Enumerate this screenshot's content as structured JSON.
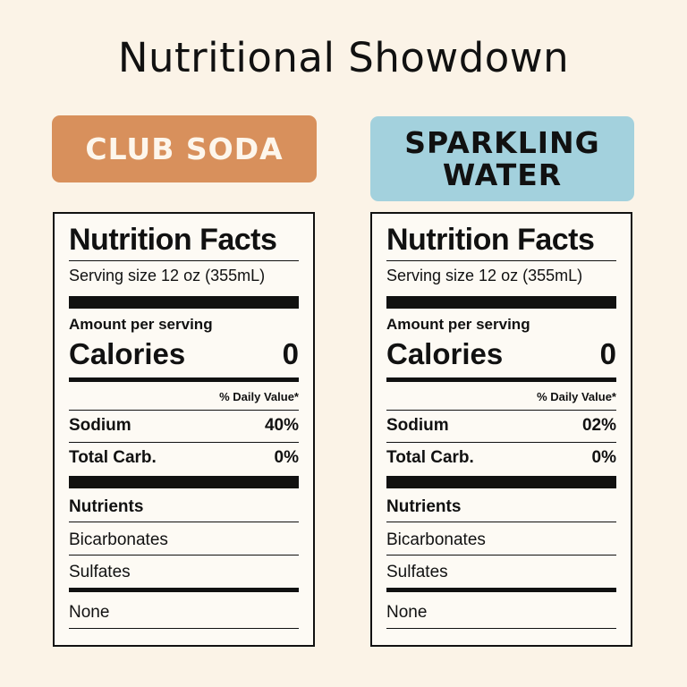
{
  "page": {
    "title": "Nutritional Showdown"
  },
  "products": [
    {
      "badge": "CLUB SODA",
      "badge_color": "#d8905c",
      "label": {
        "title": "Nutrition Facts",
        "serving_size": "Serving size 12 oz (355mL)",
        "amount_per_serving": "Amount per serving",
        "calories_label": "Calories",
        "calories_value": "0",
        "daily_value_header": "% Daily Value*",
        "rows": [
          {
            "label": "Sodium",
            "value": "40%"
          },
          {
            "label": "Total Carb.",
            "value": "0%"
          }
        ],
        "nutrients_header": "Nutrients",
        "nutrients": [
          "Bicarbonates",
          "Sulfates"
        ],
        "footer": "None"
      }
    },
    {
      "badge": "SPARKLING\nWATER",
      "badge_color": "#a3d1dd",
      "label": {
        "title": "Nutrition Facts",
        "serving_size": "Serving size 12 oz (355mL)",
        "amount_per_serving": "Amount per serving",
        "calories_label": "Calories",
        "calories_value": "0",
        "daily_value_header": "% Daily Value*",
        "rows": [
          {
            "label": "Sodium",
            "value": "02%"
          },
          {
            "label": "Total Carb.",
            "value": "0%"
          }
        ],
        "nutrients_header": "Nutrients",
        "nutrients": [
          "Bicarbonates",
          "Sulfates"
        ],
        "footer": "None"
      }
    }
  ]
}
